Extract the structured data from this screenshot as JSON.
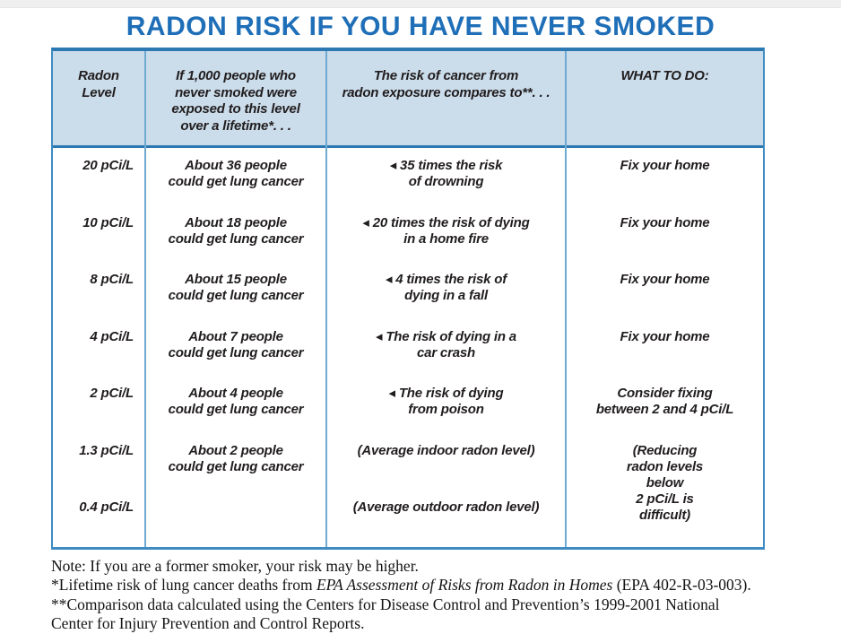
{
  "page": {
    "title": "RADON RISK IF YOU HAVE NEVER SMOKED"
  },
  "table": {
    "headers": {
      "level": "Radon\nLevel",
      "people": "If 1,000 people who\nnever smoked were\nexposed to this level\nover a lifetime*. . .",
      "compare": "The risk of cancer from\nradon exposure compares to**. . .",
      "action": "WHAT TO DO:"
    },
    "rows": [
      {
        "level": "20 pCi/L",
        "people": "About 36 people\ncould get lung cancer",
        "compare": "◂ 35 times the risk\nof drowning",
        "action": "Fix your home"
      },
      {
        "level": "10 pCi/L",
        "people": "About 18 people\ncould get lung cancer",
        "compare": "◂ 20 times the risk of dying\nin a home fire",
        "action": "Fix your home"
      },
      {
        "level": "8 pCi/L",
        "people": "About 15 people\ncould get lung cancer",
        "compare": "◂ 4 times the risk of\ndying in a fall",
        "action": "Fix your home"
      },
      {
        "level": "4 pCi/L",
        "people": "About 7 people\ncould get lung cancer",
        "compare": "◂ The risk of dying in a\ncar crash",
        "action": "Fix your home"
      },
      {
        "level": "2 pCi/L",
        "people": "About 4 people\ncould get lung cancer",
        "compare": "◂ The risk of dying\nfrom poison",
        "action": "Consider fixing\nbetween 2 and 4 pCi/L"
      },
      {
        "level": "1.3 pCi/L",
        "people": "About 2 people\ncould get lung cancer",
        "compare": "(Average indoor radon level)",
        "action": ""
      },
      {
        "level": "0.4 pCi/L",
        "people": "",
        "compare": "(Average outdoor radon level)",
        "action": ""
      }
    ],
    "action_span": "(Reducing\nradon levels\nbelow\n2 pCi/L is\ndifficult)",
    "arrow_glyph": "◂"
  },
  "footnotes": {
    "note": "Note: If you are a former smoker, your risk may be higher.",
    "lifetime_pre": "*Lifetime risk of lung cancer deaths from ",
    "lifetime_italic": "EPA Assessment of Risks from Radon in Homes",
    "lifetime_post": " (EPA 402-R-03-003).",
    "comparison": "**Comparison data calculated using the Centers for Disease Control and Prevention’s 1999-2001 National\nCenter for Injury Prevention and Control Reports."
  },
  "colors": {
    "title_blue": "#1F6FB8",
    "header_bg": "#CBDCEA",
    "border_dark": "#2C79B2",
    "border_medium": "#3E8CC2",
    "border_light": "#6FAAD2",
    "body_text": "#211d1e"
  }
}
